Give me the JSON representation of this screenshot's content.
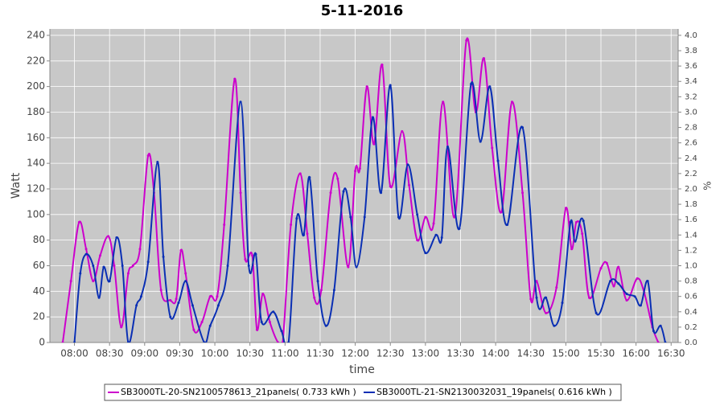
{
  "chart_data": {
    "type": "line",
    "title": "5-11-2016",
    "xlabel": "time",
    "ylabel": "Watt",
    "y2label": "%",
    "xlim": [
      "07:39",
      "16:36"
    ],
    "xticks": [
      "08:00",
      "08:30",
      "09:00",
      "09:30",
      "10:00",
      "10:30",
      "11:00",
      "11:30",
      "12:00",
      "12:30",
      "13:00",
      "13:30",
      "14:00",
      "14:30",
      "15:00",
      "15:30",
      "16:00",
      "16:30"
    ],
    "ylim": [
      0,
      245
    ],
    "yticks": [
      0,
      20,
      40,
      60,
      80,
      100,
      120,
      140,
      160,
      180,
      200,
      220,
      240
    ],
    "y2lim": [
      0,
      4.083
    ],
    "y2ticks": [
      {
        "value": 0,
        "label": "0.0"
      },
      0.2,
      0.4,
      0.6,
      0.8,
      {
        "value": 1,
        "label": "1.0"
      },
      1.2,
      1.4,
      1.6,
      1.8,
      {
        "value": 2,
        "label": "2.0"
      },
      2.2,
      2.4,
      2.6,
      2.8,
      {
        "value": 3,
        "label": "3.0"
      },
      3.2,
      3.4,
      3.6,
      3.8,
      {
        "value": 4,
        "label": "4.0"
      }
    ],
    "grid": true,
    "legend": "bottom",
    "series": [
      {
        "name": "SB3000TL-20-SN2100578613_21panels( 0.733 kWh )",
        "color": "#cc00cc",
        "x": [
          "07:50",
          "07:57",
          "08:04",
          "08:10",
          "08:16",
          "08:22",
          "08:29",
          "08:34",
          "08:40",
          "08:46",
          "08:50",
          "08:56",
          "09:03",
          "09:08",
          "09:14",
          "09:22",
          "09:27",
          "09:31",
          "09:35",
          "09:42",
          "09:49",
          "09:56",
          "10:02",
          "10:08",
          "10:17",
          "10:22",
          "10:26",
          "10:32",
          "10:36",
          "10:41",
          "10:47",
          "10:54",
          "10:58",
          "11:05",
          "11:13",
          "11:19",
          "11:25",
          "11:31",
          "11:39",
          "11:45",
          "11:54",
          "12:00",
          "12:04",
          "12:10",
          "12:16",
          "12:23",
          "12:30",
          "12:40",
          "12:46",
          "12:53",
          "13:00",
          "13:07",
          "13:15",
          "13:25",
          "13:35",
          "13:43",
          "13:50",
          "13:57",
          "14:05",
          "14:14",
          "14:23",
          "14:30",
          "14:35",
          "14:43",
          "14:52",
          "15:00",
          "15:05",
          "15:09",
          "15:14",
          "15:20",
          "15:30",
          "15:35",
          "15:41",
          "15:45",
          "15:52",
          "16:01",
          "16:07",
          "16:14",
          "16:19"
        ],
        "values": [
          0,
          48,
          94,
          73,
          48,
          68,
          83,
          60,
          12,
          54,
          60,
          73,
          146,
          117,
          41,
          33,
          34,
          72,
          54,
          10,
          16,
          36,
          36,
          92,
          206,
          117,
          65,
          68,
          10,
          38,
          16,
          0,
          0,
          92,
          132,
          85,
          35,
          41,
          117,
          128,
          59,
          134,
          136,
          200,
          155,
          217,
          122,
          165,
          123,
          80,
          98,
          93,
          188,
          98,
          236,
          180,
          222,
          152,
          102,
          188,
          117,
          34,
          48,
          23,
          43,
          105,
          73,
          94,
          85,
          35,
          58,
          62,
          44,
          59,
          33,
          50,
          39,
          12,
          0
        ]
      },
      {
        "name": "SB3000TL-21-SN2130032031_19panels( 0.616 kWh )",
        "color": "#0a2fb4",
        "x": [
          "08:00",
          "08:05",
          "08:10",
          "08:16",
          "08:21",
          "08:25",
          "08:30",
          "08:36",
          "08:41",
          "08:46",
          "08:53",
          "08:57",
          "09:03",
          "09:11",
          "09:16",
          "09:22",
          "09:29",
          "09:35",
          "09:41",
          "09:51",
          "09:56",
          "10:03",
          "10:11",
          "10:22",
          "10:29",
          "10:35",
          "10:40",
          "10:50",
          "10:57",
          "11:03",
          "11:10",
          "11:16",
          "11:21",
          "11:28",
          "11:35",
          "11:42",
          "11:50",
          "11:56",
          "12:01",
          "12:08",
          "12:15",
          "12:22",
          "12:30",
          "12:37",
          "12:45",
          "12:53",
          "13:00",
          "13:09",
          "13:14",
          "13:19",
          "13:29",
          "13:39",
          "13:47",
          "13:55",
          "14:02",
          "14:10",
          "14:23",
          "14:35",
          "14:43",
          "14:50",
          "14:57",
          "15:04",
          "15:08",
          "15:15",
          "15:26",
          "15:38",
          "15:45",
          "15:52",
          "15:59",
          "16:04",
          "16:10",
          "16:15",
          "16:21",
          "16:25"
        ],
        "values": [
          0,
          54,
          69,
          60,
          35,
          59,
          48,
          82,
          60,
          0,
          29,
          36,
          63,
          141,
          67,
          20,
          31,
          48,
          29,
          0,
          13,
          29,
          60,
          188,
          60,
          69,
          16,
          24,
          9,
          0,
          97,
          84,
          129,
          48,
          13,
          41,
          118,
          98,
          59,
          98,
          176,
          117,
          201,
          98,
          139,
          100,
          70,
          84,
          82,
          153,
          89,
          202,
          157,
          200,
          142,
          92,
          168,
          35,
          35,
          13,
          31,
          94,
          79,
          95,
          23,
          48,
          46,
          38,
          36,
          29,
          48,
          9,
          13,
          0
        ]
      }
    ]
  }
}
